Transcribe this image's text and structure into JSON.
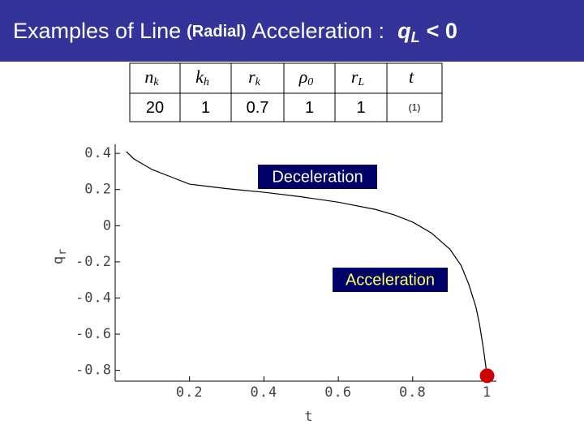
{
  "header": {
    "title": [
      "Examples of Line",
      "(Radial)",
      "Acceleration :",
      "q",
      "L",
      "< 0"
    ]
  },
  "table": {
    "headers": [
      {
        "base": "n",
        "sub": "k"
      },
      {
        "base": "k",
        "sub": "h"
      },
      {
        "base": "r",
        "sub": "k"
      },
      {
        "base": "ρ",
        "sub": "0"
      },
      {
        "base": "r",
        "sub": "L"
      },
      {
        "base": "t"
      }
    ],
    "rows": [
      [
        "20",
        "1",
        "0.7",
        "1",
        "1",
        "(1)"
      ]
    ]
  },
  "chart_data": {
    "type": "line",
    "x_label": "t",
    "y_label": {
      "base": "q",
      "sub": "r"
    },
    "xlim": [
      0,
      1.025
    ],
    "xticks": [
      0.2,
      0.4,
      0.6,
      0.8,
      1
    ],
    "ylim": [
      -0.86,
      0.45
    ],
    "yticks": [
      0.4,
      0.2,
      0,
      -0.2,
      -0.4,
      -0.6,
      -0.8
    ],
    "series": [
      {
        "color": "#000000",
        "x": [
          0.03,
          0.05,
          0.1,
          0.15,
          0.2,
          0.3,
          0.4,
          0.5,
          0.6,
          0.7,
          0.75,
          0.8,
          0.85,
          0.9,
          0.93,
          0.95,
          0.97,
          0.98,
          0.99,
          1.0
        ],
        "values": [
          0.41,
          0.37,
          0.31,
          0.27,
          0.23,
          0.205,
          0.185,
          0.16,
          0.13,
          0.09,
          0.06,
          0.02,
          -0.04,
          -0.13,
          -0.22,
          -0.32,
          -0.45,
          -0.55,
          -0.68,
          -0.83
        ]
      }
    ],
    "marker": {
      "x": 1,
      "y": -0.83,
      "color": "#cc0000"
    },
    "annotations": [
      {
        "text": "Deceleration",
        "color": "#ffffff",
        "background": "#000066"
      },
      {
        "text": "Acceleration",
        "color": "#ffff66",
        "background": "#000066"
      }
    ]
  }
}
